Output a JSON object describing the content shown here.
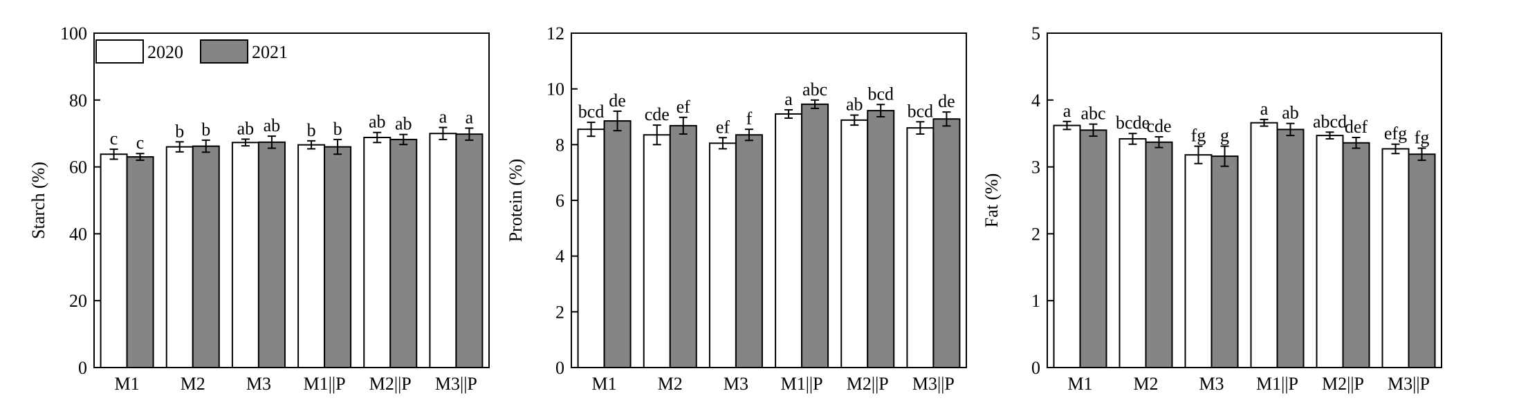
{
  "colors": {
    "series_2020": "#ffffff",
    "series_2021": "#858585",
    "stroke": "#000000"
  },
  "chart_data": [
    {
      "type": "bar",
      "ylabel": "Starch (%)",
      "ylim": [
        0,
        100
      ],
      "yticks": [
        "0",
        "20",
        "40",
        "60",
        "80",
        "100"
      ],
      "categories": [
        "M1",
        "M2",
        "M3",
        "M1||P",
        "M2||P",
        "M3||P"
      ],
      "legend": {
        "placement": "top-left",
        "entries": [
          "2020",
          "2021"
        ]
      },
      "series": [
        {
          "name": "2020",
          "values": [
            63.8,
            66.0,
            67.3,
            66.6,
            68.8,
            70.0
          ],
          "errors": [
            1.5,
            1.5,
            1.0,
            1.2,
            1.5,
            1.8
          ],
          "letters": [
            "c",
            "b",
            "ab",
            "b",
            "ab",
            "a"
          ]
        },
        {
          "name": "2021",
          "values": [
            63.0,
            66.2,
            67.4,
            66.0,
            68.2,
            69.8
          ],
          "errors": [
            1.0,
            1.8,
            1.8,
            2.2,
            1.5,
            1.8
          ],
          "letters": [
            "c",
            "b",
            "ab",
            "b",
            "ab",
            "a"
          ]
        }
      ]
    },
    {
      "type": "bar",
      "ylabel": "Protein (%)",
      "ylim": [
        0,
        12
      ],
      "yticks": [
        "0",
        "2",
        "4",
        "6",
        "8",
        "10",
        "12"
      ],
      "categories": [
        "M1",
        "M2",
        "M3",
        "M1||P",
        "M2||P",
        "M3||P"
      ],
      "series": [
        {
          "name": "2020",
          "values": [
            8.55,
            8.35,
            8.05,
            9.1,
            8.88,
            8.6
          ],
          "errors": [
            0.25,
            0.35,
            0.2,
            0.15,
            0.18,
            0.22
          ],
          "letters": [
            "bcd",
            "cde",
            "ef",
            "a",
            "ab",
            "bcd"
          ]
        },
        {
          "name": "2021",
          "values": [
            8.85,
            8.68,
            8.35,
            9.45,
            9.22,
            8.92
          ],
          "errors": [
            0.35,
            0.3,
            0.2,
            0.15,
            0.22,
            0.25
          ],
          "letters": [
            "de",
            "ef",
            "f",
            "abc",
            "bcd",
            "de"
          ]
        }
      ]
    },
    {
      "type": "bar",
      "ylabel": "Fat (%)",
      "ylim": [
        0,
        5
      ],
      "yticks": [
        "0",
        "1",
        "2",
        "3",
        "4",
        "5"
      ],
      "categories": [
        "M1",
        "M2",
        "M3",
        "M1||P",
        "M2||P",
        "M3||P"
      ],
      "series": [
        {
          "name": "2020",
          "values": [
            3.62,
            3.42,
            3.18,
            3.66,
            3.47,
            3.27
          ],
          "errors": [
            0.06,
            0.08,
            0.13,
            0.05,
            0.05,
            0.07
          ],
          "letters": [
            "a",
            "bcde",
            "fg",
            "a",
            "abcd",
            "efg"
          ]
        },
        {
          "name": "2021",
          "values": [
            3.55,
            3.37,
            3.16,
            3.56,
            3.36,
            3.19
          ],
          "errors": [
            0.09,
            0.08,
            0.15,
            0.09,
            0.08,
            0.09
          ],
          "letters": [
            "abc",
            "cde",
            "g",
            "ab",
            "def",
            "fg"
          ]
        }
      ]
    }
  ]
}
